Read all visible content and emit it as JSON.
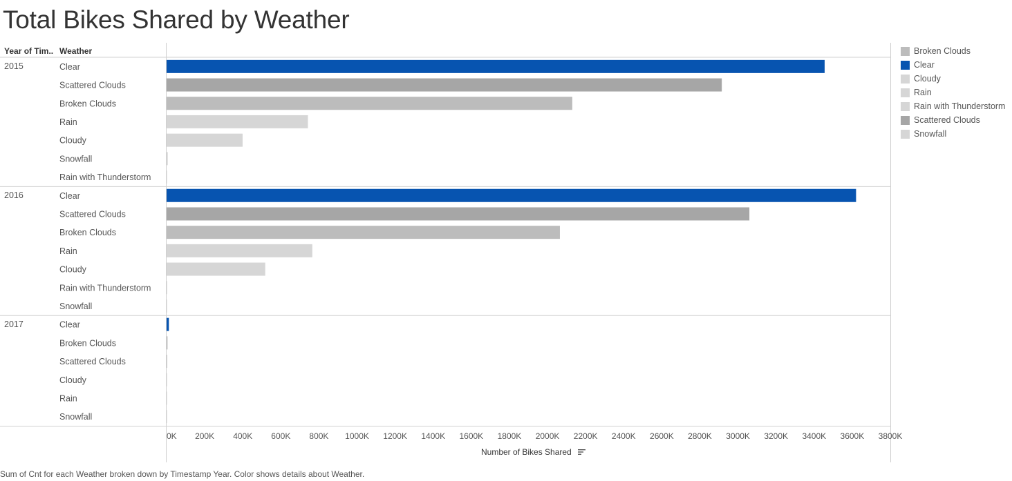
{
  "title": "Total Bikes Shared by Weather",
  "headers": {
    "year": "Year of Tim..",
    "weather": "Weather"
  },
  "caption": "Sum of Cnt for each Weather broken down by Timestamp Year.  Color shows details about Weather.",
  "colors": {
    "Broken Clouds": "#bcbcbc",
    "Clear": "#0754b0",
    "Cloudy": "#d6d6d6",
    "Rain": "#d6d6d6",
    "Rain with Thunderstorm": "#d6d6d6",
    "Scattered Clouds": "#a6a6a6",
    "Snowfall": "#d6d6d6"
  },
  "legend": [
    "Broken Clouds",
    "Clear",
    "Cloudy",
    "Rain",
    "Rain with Thunderstorm",
    "Scattered Clouds",
    "Snowfall"
  ],
  "chart_data": {
    "type": "bar",
    "orientation": "horizontal",
    "xlabel": "Number of Bikes Shared",
    "xlim": [
      0,
      3800000
    ],
    "x_ticks": [
      "0K",
      "200K",
      "400K",
      "600K",
      "800K",
      "1000K",
      "1200K",
      "1400K",
      "1600K",
      "1800K",
      "2000K",
      "2200K",
      "2400K",
      "2600K",
      "2800K",
      "3000K",
      "3200K",
      "3400K",
      "3600K",
      "3800K"
    ],
    "grid": false,
    "legend_position": "right",
    "groups": [
      {
        "year": "2015",
        "rows": [
          {
            "weather": "Clear",
            "value": 3455000
          },
          {
            "weather": "Scattered Clouds",
            "value": 2915000
          },
          {
            "weather": "Broken Clouds",
            "value": 2130000
          },
          {
            "weather": "Rain",
            "value": 742000
          },
          {
            "weather": "Cloudy",
            "value": 399000
          },
          {
            "weather": "Snowfall",
            "value": 6000
          },
          {
            "weather": "Rain with Thunderstorm",
            "value": 1000
          }
        ]
      },
      {
        "year": "2016",
        "rows": [
          {
            "weather": "Clear",
            "value": 3620000
          },
          {
            "weather": "Scattered Clouds",
            "value": 3060000
          },
          {
            "weather": "Broken Clouds",
            "value": 2065000
          },
          {
            "weather": "Rain",
            "value": 765000
          },
          {
            "weather": "Cloudy",
            "value": 518000
          },
          {
            "weather": "Rain with Thunderstorm",
            "value": 3000
          },
          {
            "weather": "Snowfall",
            "value": 1000
          }
        ]
      },
      {
        "year": "2017",
        "rows": [
          {
            "weather": "Clear",
            "value": 12000
          },
          {
            "weather": "Broken Clouds",
            "value": 5000
          },
          {
            "weather": "Scattered Clouds",
            "value": 1500
          },
          {
            "weather": "Cloudy",
            "value": 500
          },
          {
            "weather": "Rain",
            "value": 500
          },
          {
            "weather": "Snowfall",
            "value": 300
          }
        ]
      }
    ]
  }
}
